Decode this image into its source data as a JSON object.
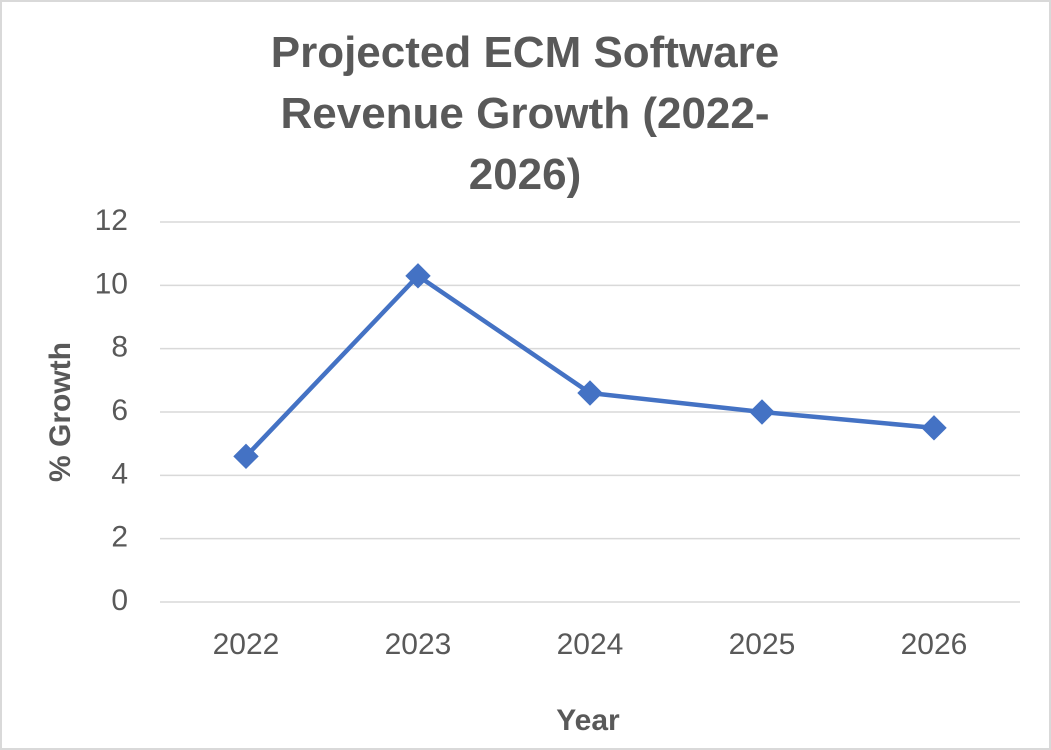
{
  "chart_data": {
    "type": "line",
    "title": "Projected ECM Software Revenue Growth (2022-2026)",
    "x_label": "Year",
    "y_label": "% Growth",
    "categories": [
      "2022",
      "2023",
      "2024",
      "2025",
      "2026"
    ],
    "values": [
      4.6,
      10.3,
      6.6,
      6.0,
      5.5
    ],
    "color": "#4472c4",
    "ylim": [
      0,
      12
    ],
    "yticks": [
      0,
      2,
      4,
      6,
      8,
      10,
      12
    ],
    "grid": true
  }
}
